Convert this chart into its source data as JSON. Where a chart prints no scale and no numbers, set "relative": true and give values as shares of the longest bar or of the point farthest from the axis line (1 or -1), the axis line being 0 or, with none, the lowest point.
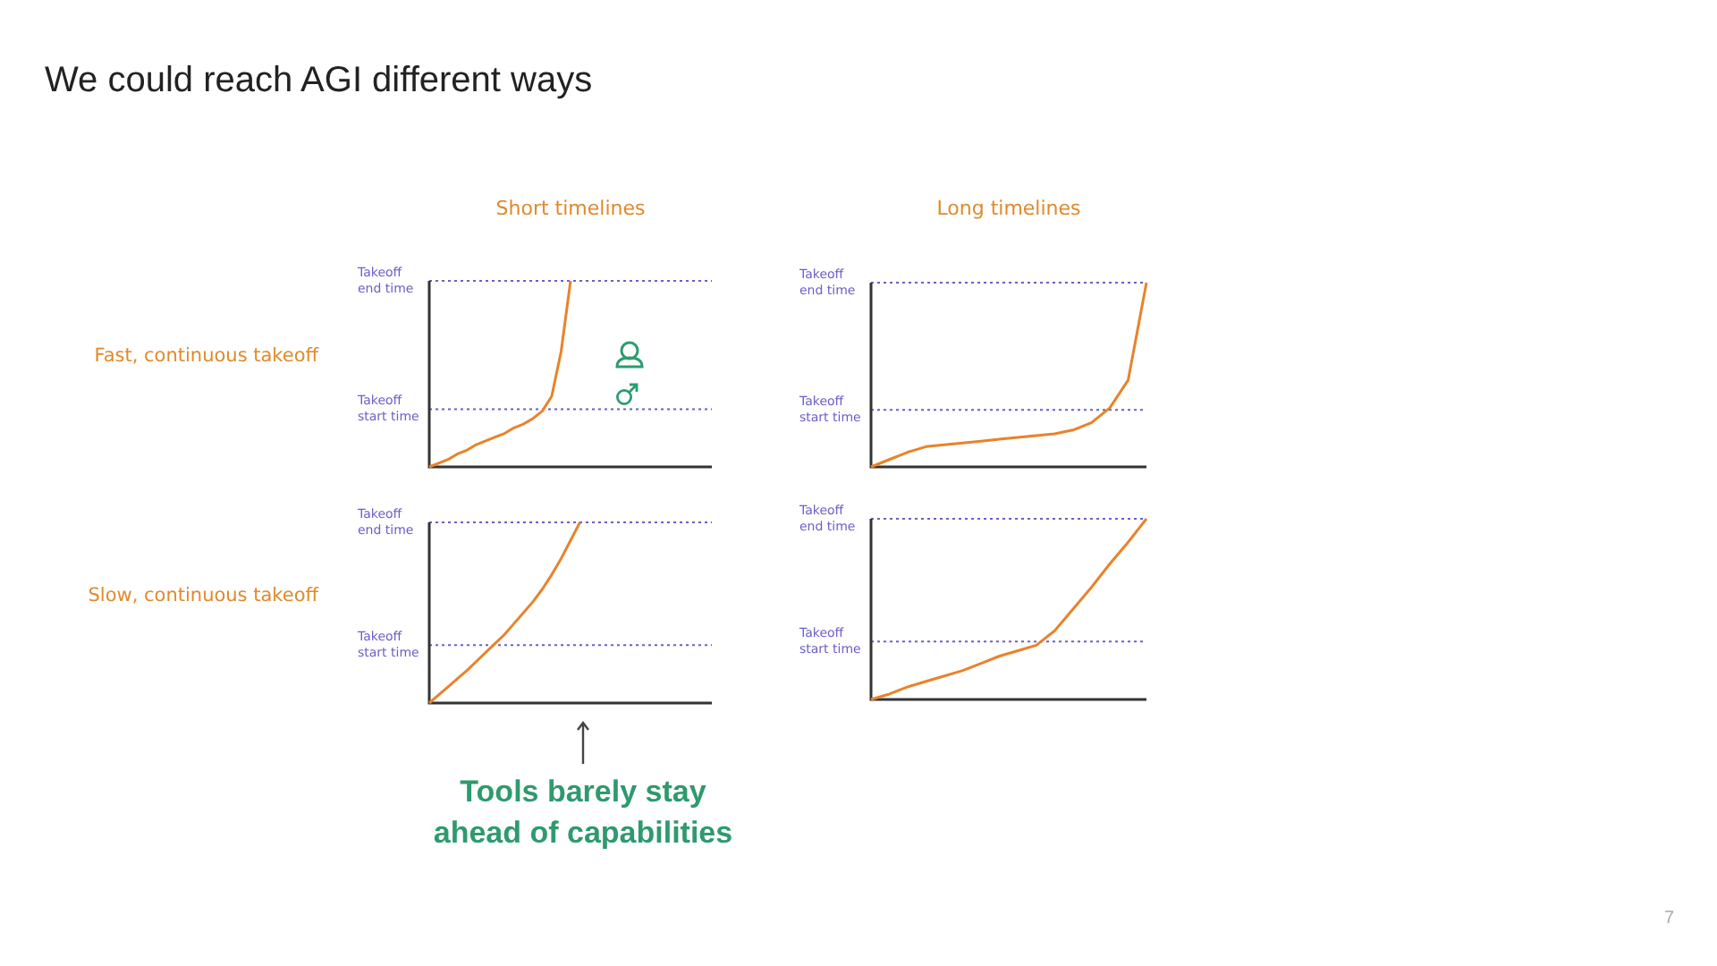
{
  "chart_data": [
    {
      "type": "other",
      "title": "We could reach AGI different ways",
      "annotations": [
        "7"
      ]
    },
    {
      "type": "line",
      "title": "Short timelines",
      "ylabel": "Fast, continuous takeoff",
      "relative": true,
      "marker": "none",
      "categories": [
        null,
        null,
        null,
        null,
        null,
        null,
        null,
        null,
        null,
        null,
        null,
        null,
        null,
        null,
        null,
        null,
        null,
        null,
        null,
        null,
        null,
        null,
        null,
        null,
        null,
        null,
        null,
        null,
        null,
        null,
        null
      ],
      "series": [
        {
          "color": "#e8832a",
          "values": [
            0,
            0.02,
            0.04,
            0.07,
            0.09,
            0.12,
            0.14,
            0.16,
            0.18,
            0.21,
            0.23,
            0.26,
            0.3,
            0.38,
            0.62,
            1,
            null,
            null,
            null,
            null,
            null,
            null,
            null,
            null,
            null,
            null,
            null,
            null,
            null,
            null,
            null
          ]
        }
      ],
      "ref_lines": [
        {
          "axis": "y",
          "value": 1,
          "label": "Takeoff end time",
          "color": "#6b5fc7",
          "line_style": "dotted"
        },
        {
          "axis": "y",
          "value": 0.31,
          "label": "Takeoff start time",
          "color": "#6b5fc7",
          "line_style": "dotted"
        }
      ]
    },
    {
      "type": "line",
      "title": "Long timelines",
      "relative": true,
      "marker": "none",
      "categories": [
        null,
        null,
        null,
        null,
        null,
        null,
        null,
        null,
        null,
        null,
        null,
        null,
        null,
        null,
        null,
        null
      ],
      "series": [
        {
          "color": "#e8832a",
          "values": [
            0,
            0.04,
            0.08,
            0.11,
            0.12,
            0.13,
            0.14,
            0.15,
            0.16,
            0.17,
            0.18,
            0.2,
            0.24,
            0.32,
            0.47,
            1
          ]
        }
      ],
      "ref_lines": [
        {
          "axis": "y",
          "value": 1,
          "label": "Takeoff end time",
          "color": "#6b5fc7",
          "line_style": "dotted"
        },
        {
          "axis": "y",
          "value": 0.31,
          "label": "Takeoff start time",
          "color": "#6b5fc7",
          "line_style": "dotted"
        }
      ]
    },
    {
      "type": "line",
      "ylabel": "Slow, continuous takeoff",
      "relative": true,
      "marker": "none",
      "annotations": [
        "Tools barely stay ahead of capabilities"
      ],
      "categories": [
        null,
        null,
        null,
        null,
        null,
        null,
        null,
        null,
        null,
        null,
        null,
        null,
        null,
        null,
        null,
        null,
        null,
        null,
        null,
        null,
        null,
        null,
        null,
        null,
        null,
        null,
        null,
        null,
        null,
        null,
        null
      ],
      "series": [
        {
          "color": "#e8832a",
          "values": [
            0,
            0.045,
            0.09,
            0.135,
            0.18,
            0.23,
            0.28,
            0.33,
            0.38,
            0.44,
            0.5,
            0.56,
            0.63,
            0.71,
            0.8,
            0.9,
            1,
            null,
            null,
            null,
            null,
            null,
            null,
            null,
            null,
            null,
            null,
            null,
            null,
            null,
            null
          ]
        }
      ],
      "ref_lines": [
        {
          "axis": "y",
          "value": 1,
          "label": "Takeoff end time",
          "color": "#6b5fc7",
          "line_style": "dotted"
        },
        {
          "axis": "y",
          "value": 0.32,
          "label": "Takeoff start time",
          "color": "#6b5fc7",
          "line_style": "dotted"
        }
      ]
    },
    {
      "type": "line",
      "relative": true,
      "marker": "none",
      "categories": [
        null,
        null,
        null,
        null,
        null,
        null,
        null,
        null,
        null,
        null,
        null,
        null,
        null,
        null,
        null,
        null
      ],
      "series": [
        {
          "color": "#e8832a",
          "values": [
            0,
            0.03,
            0.07,
            0.1,
            0.13,
            0.16,
            0.2,
            0.24,
            0.27,
            0.3,
            0.38,
            0.5,
            0.62,
            0.75,
            0.87,
            1
          ]
        }
      ],
      "ref_lines": [
        {
          "axis": "y",
          "value": 1,
          "label": "Takeoff end time",
          "color": "#6b5fc7",
          "line_style": "dotted"
        },
        {
          "axis": "y",
          "value": 0.32,
          "label": "Takeoff start time",
          "color": "#6b5fc7",
          "line_style": "dotted"
        }
      ]
    }
  ]
}
